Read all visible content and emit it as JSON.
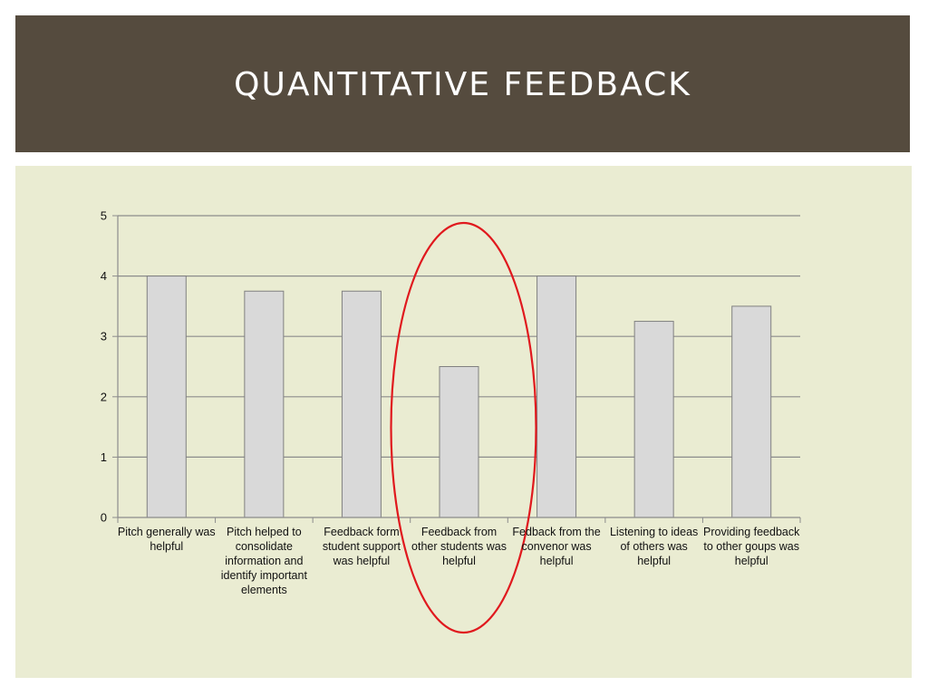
{
  "slide": {
    "title": "QUANTITATIVE FEEDBACK"
  },
  "colors": {
    "header_bg": "#554b3e",
    "panel_bg": "#eaecd2",
    "bar_fill": "#d9d9d9",
    "bar_stroke": "#808080",
    "grid": "#8c8c8c",
    "highlight": "#e0191e"
  },
  "chart_data": {
    "type": "bar",
    "title": "",
    "xlabel": "",
    "ylabel": "",
    "ylim": [
      0,
      5
    ],
    "yticks": [
      0,
      1,
      2,
      3,
      4,
      5
    ],
    "grid": true,
    "legend": "none",
    "categories": [
      "Pitch generally was helpful",
      "Pitch helped to consolidate information and identify important elements",
      "Feedback form student support was helpful",
      "Feedback from other students was helpful",
      "Fedback from the convenor was helpful",
      "Listening to ideas of others was helpful",
      "Providing feedback to other goups was helpful"
    ],
    "values": [
      4,
      3.75,
      3.75,
      2.5,
      4,
      3.25,
      3.5
    ],
    "highlighted_category_index": 3
  }
}
